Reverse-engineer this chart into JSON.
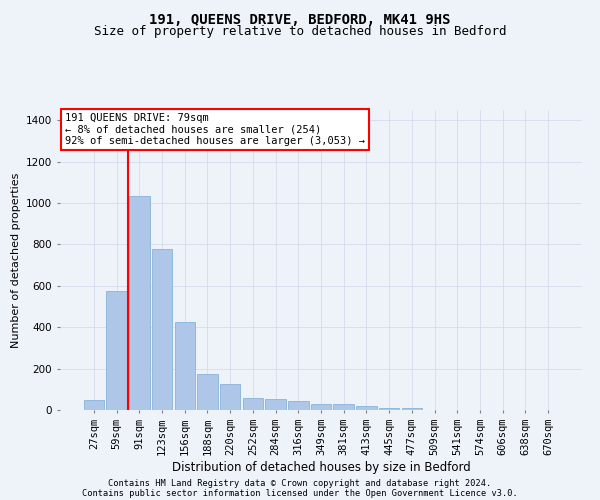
{
  "title1": "191, QUEENS DRIVE, BEDFORD, MK41 9HS",
  "title2": "Size of property relative to detached houses in Bedford",
  "xlabel": "Distribution of detached houses by size in Bedford",
  "ylabel": "Number of detached properties",
  "footer1": "Contains HM Land Registry data © Crown copyright and database right 2024.",
  "footer2": "Contains public sector information licensed under the Open Government Licence v3.0.",
  "bar_labels": [
    "27sqm",
    "59sqm",
    "91sqm",
    "123sqm",
    "156sqm",
    "188sqm",
    "220sqm",
    "252sqm",
    "284sqm",
    "316sqm",
    "349sqm",
    "381sqm",
    "413sqm",
    "445sqm",
    "477sqm",
    "509sqm",
    "541sqm",
    "574sqm",
    "606sqm",
    "638sqm",
    "670sqm"
  ],
  "bar_values": [
    47,
    575,
    1035,
    780,
    425,
    175,
    128,
    60,
    55,
    45,
    28,
    27,
    20,
    12,
    10,
    0,
    0,
    0,
    0,
    0,
    0
  ],
  "bar_color": "#aec6e8",
  "bar_edge_color": "#7aadd4",
  "ylim": [
    0,
    1450
  ],
  "yticks": [
    0,
    200,
    400,
    600,
    800,
    1000,
    1200,
    1400
  ],
  "vline_x": 1.5,
  "annotation_title": "191 QUEENS DRIVE: 79sqm",
  "annotation_line1": "← 8% of detached houses are smaller (254)",
  "annotation_line2": "92% of semi-detached houses are larger (3,053) →",
  "bg_color": "#eef2f9",
  "grid_color": "#d0d8e8",
  "title1_fontsize": 10,
  "title2_fontsize": 9,
  "ylabel_fontsize": 8,
  "xlabel_fontsize": 8.5,
  "tick_fontsize": 7.5,
  "annot_fontsize": 7.5,
  "footer_fontsize": 6.2
}
